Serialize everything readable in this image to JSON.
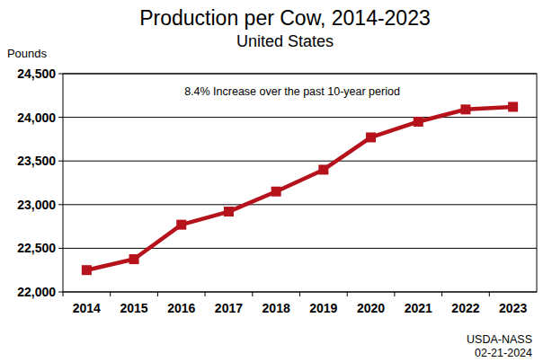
{
  "chart_data": {
    "type": "line",
    "title": "Production per Cow, 2014-2023",
    "subtitle": "United States",
    "y_label": "Pounds",
    "annotation": "8.4% Increase over the past 10-year period",
    "source": [
      "USDA-NASS",
      "02-21-2024"
    ],
    "categories": [
      "2014",
      "2015",
      "2016",
      "2017",
      "2018",
      "2019",
      "2020",
      "2021",
      "2022",
      "2023"
    ],
    "values": [
      22250,
      22375,
      22770,
      22920,
      23150,
      23400,
      23770,
      23950,
      24090,
      24120
    ],
    "color": "#b5121b",
    "marker": "square",
    "ylim": [
      22000,
      24500
    ],
    "yticks": [
      {
        "value": 22000,
        "label": "22,000"
      },
      {
        "value": 22500,
        "label": "22,500"
      },
      {
        "value": 23000,
        "label": "23,000"
      },
      {
        "value": 23500,
        "label": "23,500"
      },
      {
        "value": 24000,
        "label": "24,000"
      },
      {
        "value": 24500,
        "label": "24,500"
      }
    ],
    "grid": true
  }
}
